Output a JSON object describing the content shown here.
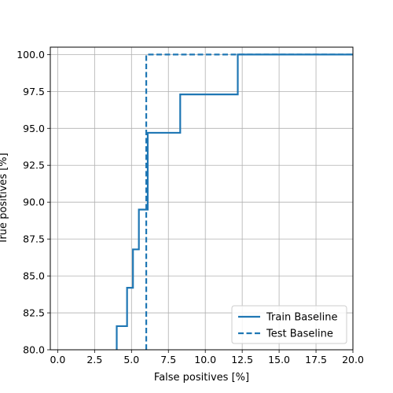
{
  "chart_data": {
    "type": "line",
    "xlabel": "False positives [%]",
    "ylabel": "True positives [%]",
    "xlim": [
      -0.5,
      20
    ],
    "ylim": [
      80,
      100.5
    ],
    "x_ticks": [
      "0.0",
      "2.5",
      "5.0",
      "7.5",
      "10.0",
      "12.5",
      "15.0",
      "17.5",
      "20.0"
    ],
    "y_ticks": [
      "80.0",
      "82.5",
      "85.0",
      "87.5",
      "90.0",
      "92.5",
      "95.0",
      "97.5",
      "100.0"
    ],
    "grid": true,
    "legend_position": "lower-right",
    "series": [
      {
        "name": "Train Baseline",
        "style": "solid",
        "color": "#1f77b4",
        "points": [
          [
            4.0,
            80.0
          ],
          [
            4.0,
            81.6
          ],
          [
            4.7,
            81.6
          ],
          [
            4.7,
            84.2
          ],
          [
            5.1,
            84.2
          ],
          [
            5.1,
            86.8
          ],
          [
            5.5,
            86.8
          ],
          [
            5.5,
            89.5
          ],
          [
            6.1,
            89.5
          ],
          [
            6.1,
            94.7
          ],
          [
            8.3,
            94.7
          ],
          [
            8.3,
            97.3
          ],
          [
            12.2,
            97.3
          ],
          [
            12.2,
            100.0
          ],
          [
            20.0,
            100.0
          ]
        ]
      },
      {
        "name": "Test Baseline",
        "style": "dashed",
        "color": "#1f77b4",
        "points": [
          [
            6.0,
            80.0
          ],
          [
            6.0,
            100.0
          ],
          [
            20.0,
            100.0
          ]
        ]
      }
    ]
  }
}
